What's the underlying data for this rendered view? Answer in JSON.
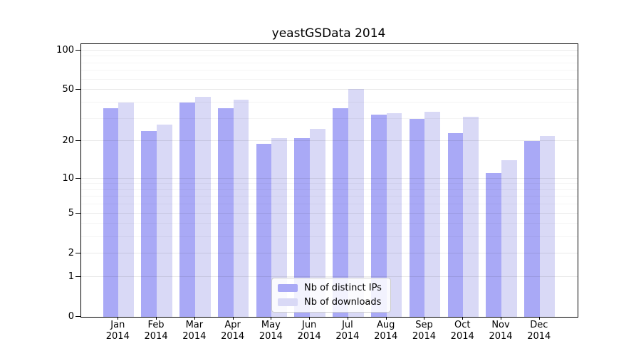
{
  "chart_data": {
    "type": "bar",
    "title": "yeastGSData 2014",
    "xlabel": "",
    "ylabel": "",
    "months": [
      "Jan",
      "Feb",
      "Mar",
      "Apr",
      "May",
      "Jun",
      "Jul",
      "Aug",
      "Sep",
      "Oct",
      "Nov",
      "Dec"
    ],
    "year": "2014",
    "series": [
      {
        "name": "Nb of distinct IPs",
        "color": "#a9a9f6",
        "values": [
          36,
          24,
          40,
          36,
          19,
          21,
          36,
          32,
          30,
          23,
          11,
          20
        ]
      },
      {
        "name": "Nb of downloads",
        "color": "#d9d9f6",
        "values": [
          40,
          27,
          44,
          42,
          21,
          25,
          51,
          33,
          34,
          31,
          14,
          22
        ]
      }
    ],
    "y_axis": {
      "scale": "log1p",
      "tick_values": [
        0,
        1,
        2,
        5,
        10,
        20,
        50,
        100
      ],
      "minor_tick_values": [
        3,
        4,
        6,
        7,
        8,
        9,
        30,
        40,
        60,
        70,
        80,
        90
      ],
      "ylim": [
        0,
        115
      ]
    },
    "grid": true,
    "legend_position": "inside-bottom-center"
  }
}
